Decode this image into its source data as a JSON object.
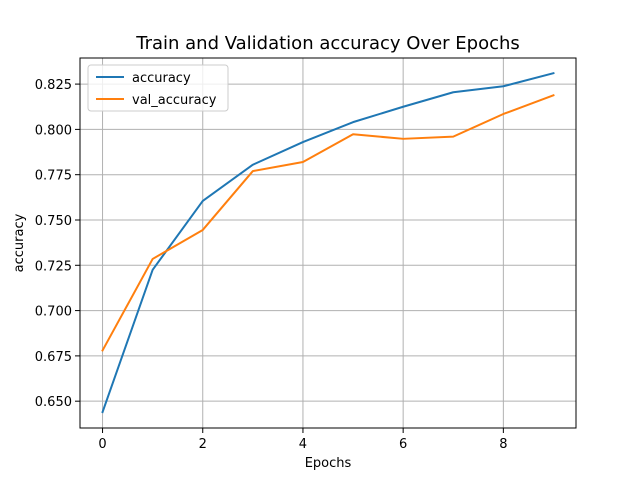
{
  "chart_data": {
    "type": "line",
    "title": "Train and Validation accuracy Over Epochs",
    "xlabel": "Epochs",
    "ylabel": "accuracy",
    "x": [
      0,
      1,
      2,
      3,
      4,
      5,
      6,
      7,
      8,
      9
    ],
    "xlim": [
      -0.45,
      9.45
    ],
    "ylim": [
      0.6352,
      0.8394
    ],
    "xticks": [
      0,
      2,
      4,
      6,
      8
    ],
    "xtick_labels": [
      "0",
      "2",
      "4",
      "6",
      "8"
    ],
    "yticks": [
      0.65,
      0.675,
      0.7,
      0.725,
      0.75,
      0.775,
      0.8,
      0.825
    ],
    "ytick_labels": [
      "0.650",
      "0.675",
      "0.700",
      "0.725",
      "0.750",
      "0.775",
      "0.800",
      "0.825"
    ],
    "grid": true,
    "legend_position": "top-left",
    "series": [
      {
        "name": "accuracy",
        "color": "#1f77b4",
        "values": [
          0.644,
          0.7225,
          0.7605,
          0.7805,
          0.793,
          0.804,
          0.8125,
          0.8205,
          0.8238,
          0.831
        ]
      },
      {
        "name": "val_accuracy",
        "color": "#ff7f0e",
        "values": [
          0.678,
          0.7285,
          0.7445,
          0.777,
          0.782,
          0.7973,
          0.7948,
          0.796,
          0.8085,
          0.8188
        ]
      }
    ]
  }
}
